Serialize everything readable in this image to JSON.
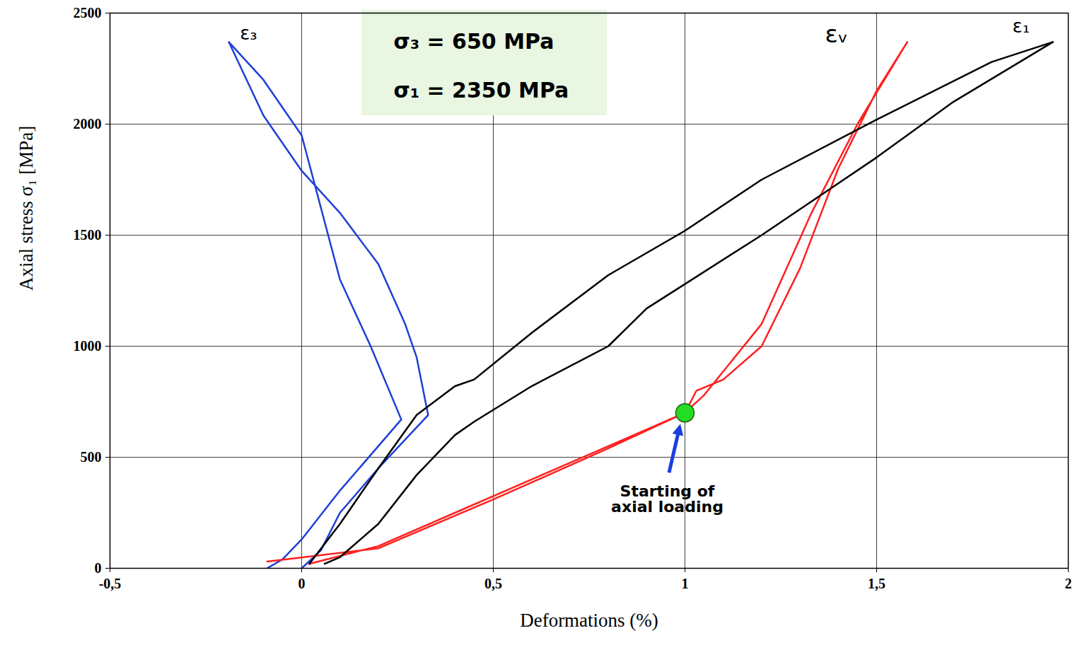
{
  "chart_data": {
    "type": "line",
    "x_label": "Deformations (%)",
    "y_label": "Axial stress σ₁ [MPa]",
    "xlim": [
      -0.5,
      2
    ],
    "ylim": [
      0,
      2500
    ],
    "xticks": [
      {
        "value": -0.5,
        "label": "-0,5"
      },
      0,
      {
        "value": 0.5,
        "label": "0,5"
      },
      1,
      {
        "value": 1.5,
        "label": "1,5"
      },
      2
    ],
    "yticks": [
      0,
      500,
      1000,
      1500,
      2000,
      2500
    ],
    "grid": true,
    "series": [
      {
        "name": "ε₃",
        "color": "#1f3fd6",
        "x": [
          0,
          0.05,
          0.1,
          0.2,
          0.33,
          0.3,
          0.27,
          0.2,
          0.1,
          0,
          -0.1,
          -0.19,
          -0.1,
          0,
          0.1,
          0.18,
          0.26,
          0.1,
          0,
          -0.05,
          -0.09
        ],
        "values": [
          0,
          80,
          250,
          450,
          690,
          950,
          1100,
          1370,
          1600,
          1790,
          2040,
          2370,
          2200,
          1950,
          1300,
          1000,
          670,
          350,
          130,
          40,
          0
        ]
      },
      {
        "name": "εᵥ",
        "color": "#ff2020",
        "x": [
          0.02,
          0.2,
          0.4,
          0.6,
          0.8,
          1.0,
          1.03,
          1.1,
          1.2,
          1.3,
          1.4,
          1.5,
          1.58,
          1.45,
          1.33,
          1.2,
          1.05,
          1.0,
          0.8,
          0.5,
          0.2,
          -0.09
        ],
        "values": [
          20,
          100,
          250,
          400,
          550,
          700,
          800,
          850,
          1000,
          1350,
          1800,
          2150,
          2370,
          2000,
          1600,
          1100,
          780,
          700,
          540,
          310,
          90,
          30
        ]
      },
      {
        "name": "ε₁",
        "color": "#000000",
        "x": [
          0.06,
          0.1,
          0.2,
          0.3,
          0.4,
          0.45,
          0.6,
          0.8,
          0.9,
          1.0,
          1.2,
          1.5,
          1.7,
          1.96,
          1.8,
          1.5,
          1.2,
          1.0,
          0.8,
          0.6,
          0.45,
          0.4,
          0.3,
          0.2,
          0.1,
          0.02
        ],
        "values": [
          20,
          50,
          200,
          420,
          600,
          660,
          820,
          1000,
          1170,
          1280,
          1500,
          1850,
          2100,
          2370,
          2280,
          2020,
          1750,
          1520,
          1320,
          1060,
          850,
          820,
          690,
          450,
          200,
          20
        ]
      }
    ],
    "annotations": [
      {
        "text": "σ₃ = 650 MPa",
        "x": 0.24,
        "y": 2370
      },
      {
        "text": "σ₁ = 2350 MPa",
        "x": 0.24,
        "y": 2150
      },
      {
        "text": "Starting of axial loading",
        "x": 1,
        "y": 700,
        "marker": "circle",
        "color": "#22dd22"
      }
    ]
  }
}
